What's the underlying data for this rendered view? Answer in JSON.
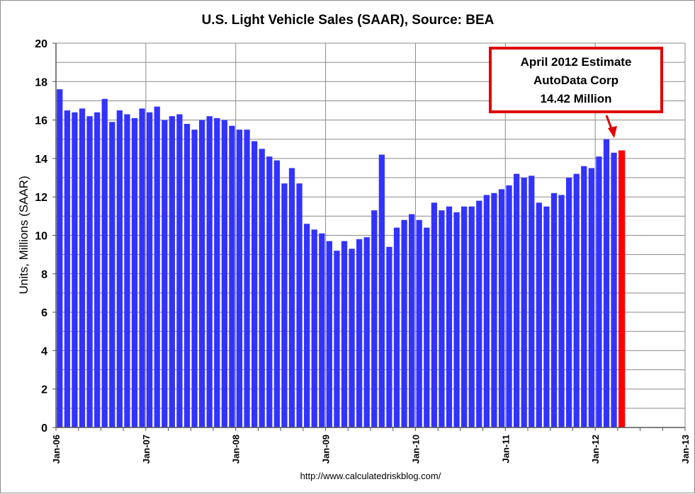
{
  "chart_data": {
    "type": "bar",
    "title": "U.S. Light Vehicle Sales (SAAR), Source: BEA",
    "xlabel": "",
    "ylabel": "Units, Millions (SAAR)",
    "ylim": [
      0,
      20
    ],
    "yticks": [
      0,
      2,
      4,
      6,
      8,
      10,
      12,
      14,
      16,
      18,
      20
    ],
    "xtick_labels": [
      "Jan-06",
      "Jan-07",
      "Jan-08",
      "Jan-09",
      "Jan-10",
      "Jan-11",
      "Jan-12",
      "Jan-13"
    ],
    "grid": true,
    "source_text": "http://www.calculatedriskblog.com/",
    "bar_color": "#3333ff",
    "highlight_color": "#ff0000",
    "highlight_index": 75,
    "values": [
      17.6,
      16.5,
      16.4,
      16.6,
      16.2,
      16.4,
      17.1,
      15.9,
      16.5,
      16.3,
      16.1,
      16.6,
      16.4,
      16.7,
      16.0,
      16.2,
      16.3,
      15.8,
      15.5,
      16.0,
      16.2,
      16.1,
      16.0,
      15.7,
      15.5,
      15.5,
      14.9,
      14.5,
      14.1,
      13.9,
      12.7,
      13.5,
      12.7,
      10.6,
      10.3,
      10.1,
      9.7,
      9.2,
      9.7,
      9.3,
      9.8,
      9.9,
      11.3,
      14.2,
      9.4,
      10.4,
      10.8,
      11.1,
      10.8,
      10.4,
      11.7,
      11.3,
      11.5,
      11.2,
      11.5,
      11.5,
      11.8,
      12.1,
      12.2,
      12.4,
      12.6,
      13.2,
      13.0,
      13.1,
      11.7,
      11.5,
      12.2,
      12.1,
      13.0,
      13.2,
      13.6,
      13.5,
      14.1,
      15.0,
      14.3,
      14.42
    ],
    "callout": {
      "lines": [
        "April 2012 Estimate",
        "AutoData  Corp",
        "14.42 Million"
      ],
      "color": "#e00000"
    }
  }
}
